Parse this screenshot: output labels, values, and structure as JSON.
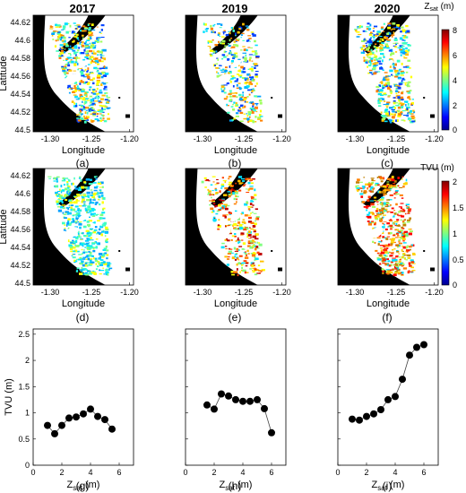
{
  "years": [
    "2017",
    "2019",
    "2020"
  ],
  "map_axis": {
    "xlabel": "Longitude",
    "ylabel": "Latitude",
    "xticks": [
      "-1.30",
      "-1.25",
      "-1.20"
    ],
    "yticks": [
      "44.62",
      "44.6",
      "44.58",
      "44.56",
      "44.54",
      "44.52",
      "44.5"
    ]
  },
  "zsat_colorbar": {
    "title_base": "Z",
    "title_sub": "sat",
    "title_unit": " (m)",
    "ticks": [
      "8",
      "6",
      "4",
      "2",
      "0"
    ]
  },
  "tvu_colorbar": {
    "title": "TVU (m)",
    "ticks": [
      "2",
      "1.5",
      "1",
      "0.5",
      "0"
    ]
  },
  "panel_labels": [
    "(a)",
    "(b)",
    "(c)",
    "(d)",
    "(e)",
    "(f)",
    "(g)",
    "(h)",
    "(i)"
  ],
  "scatter_axis": {
    "ylabel": "TVU (m)",
    "xlabel_base": "Z",
    "xlabel_sub": "sat",
    "xlabel_unit": " (m)",
    "xticks": [
      "0",
      "2",
      "4",
      "6"
    ],
    "yticks": [
      "0",
      "0.5",
      "1",
      "1.5",
      "2",
      "2.5"
    ],
    "xlim": [
      0,
      7
    ],
    "ylim": [
      0,
      2.6
    ]
  },
  "colors": {
    "markers": "#000000",
    "land": "#000000",
    "water": "#ffffff"
  },
  "chart_data": [
    {
      "type": "scatter",
      "panel": "(g)",
      "xlabel": "Zsat (m)",
      "ylabel": "TVU (m)",
      "xlim": [
        0,
        7
      ],
      "ylim": [
        0,
        2.6
      ],
      "x": [
        1.0,
        1.5,
        2.0,
        2.5,
        3.0,
        3.5,
        4.0,
        4.5,
        5.0,
        5.5
      ],
      "y": [
        0.76,
        0.6,
        0.76,
        0.9,
        0.92,
        0.98,
        1.07,
        0.93,
        0.87,
        0.69
      ]
    },
    {
      "type": "scatter",
      "panel": "(h)",
      "xlabel": "Zsat (m)",
      "ylabel": "",
      "xlim": [
        0,
        7
      ],
      "ylim": [
        0,
        2.6
      ],
      "x": [
        1.5,
        2.0,
        2.5,
        3.0,
        3.5,
        4.0,
        4.5,
        5.0,
        5.5,
        6.0
      ],
      "y": [
        1.15,
        1.07,
        1.36,
        1.32,
        1.25,
        1.22,
        1.22,
        1.25,
        1.08,
        0.62
      ]
    },
    {
      "type": "scatter",
      "panel": "(i)",
      "xlabel": "Zsat (m)",
      "ylabel": "",
      "xlim": [
        0,
        7
      ],
      "ylim": [
        0,
        2.6
      ],
      "x": [
        1.0,
        1.5,
        2.0,
        2.5,
        3.0,
        3.5,
        4.0,
        4.5,
        5.0,
        5.5,
        6.0
      ],
      "y": [
        0.88,
        0.86,
        0.93,
        0.98,
        1.06,
        1.25,
        1.31,
        1.64,
        2.1,
        2.25,
        2.3
      ]
    }
  ]
}
